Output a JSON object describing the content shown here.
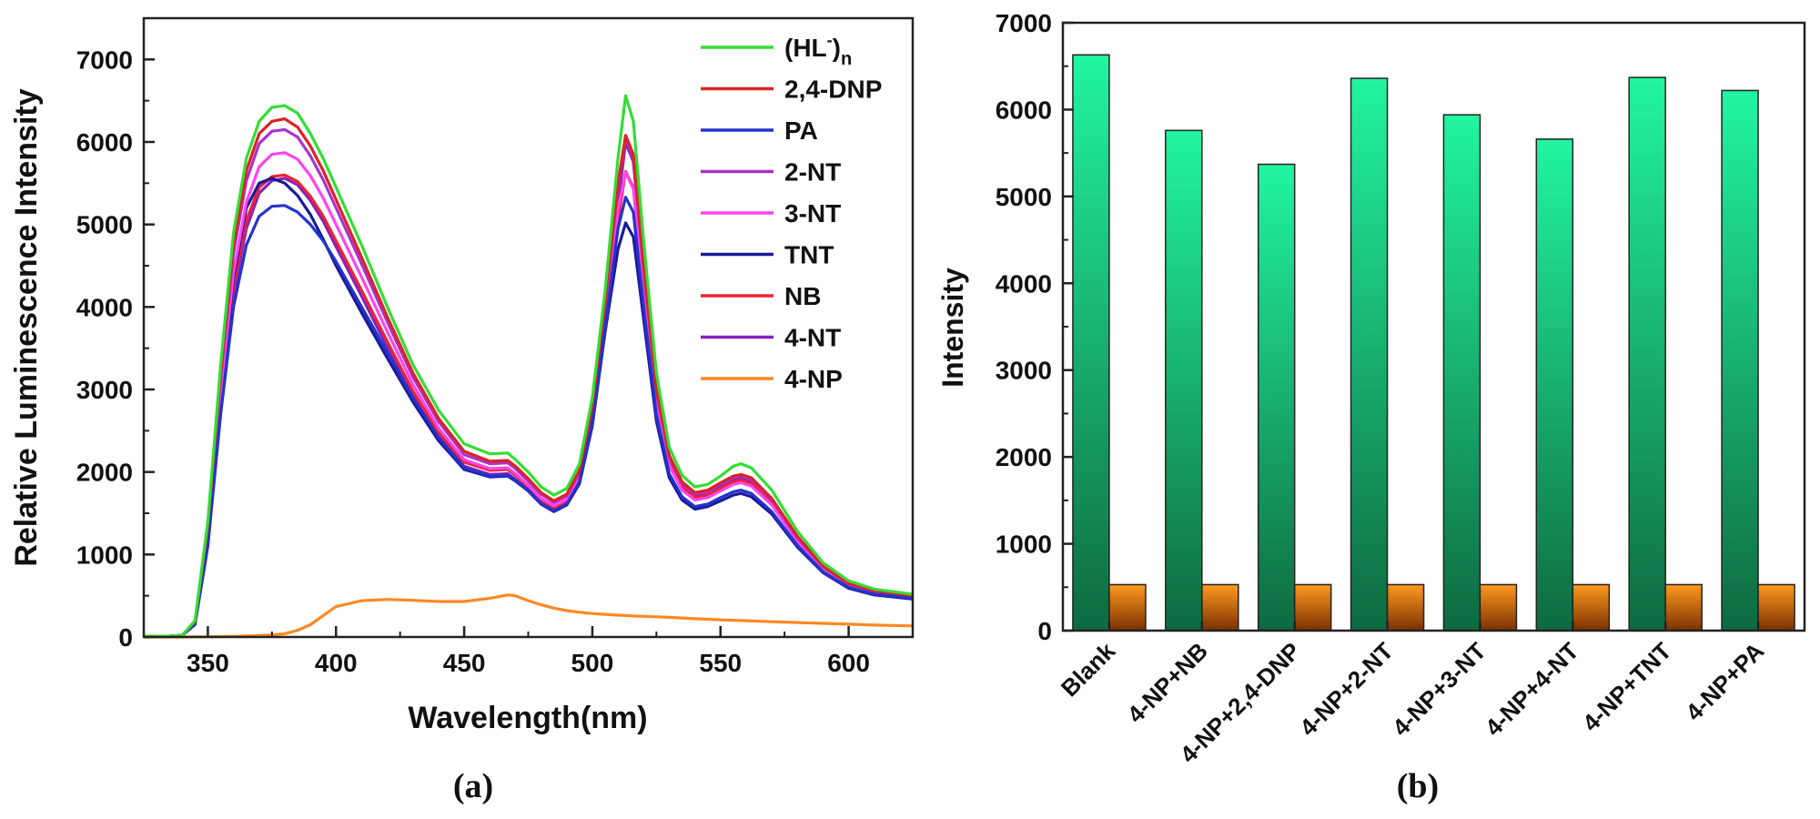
{
  "chart_data": [
    {
      "type": "line",
      "panel_label": "(a)",
      "title": "",
      "xlabel": "Wavelength(nm)",
      "ylabel": "Relative Luminescence Intensity",
      "xlim": [
        325,
        625
      ],
      "ylim": [
        0,
        7500
      ],
      "x_ticks": [
        350,
        400,
        450,
        500,
        550,
        600
      ],
      "x_tick_labels": [
        "350",
        "400",
        "450",
        "500",
        "550",
        "600"
      ],
      "y_ticks": [
        0,
        1000,
        2000,
        3000,
        4000,
        5000,
        6000,
        7000
      ],
      "y_tick_labels": [
        "0",
        "1000",
        "2000",
        "3000",
        "4000",
        "5000",
        "6000",
        "7000"
      ],
      "legend_placement": "top-right",
      "legend_title_parts": {
        "base": "(HL",
        "sup": "-",
        "close": ")",
        "sub": "n"
      },
      "x": [
        325,
        335,
        340,
        345,
        350,
        355,
        360,
        365,
        370,
        375,
        380,
        385,
        390,
        395,
        400,
        410,
        420,
        430,
        440,
        450,
        460,
        467,
        470,
        475,
        480,
        485,
        490,
        495,
        500,
        505,
        510,
        513,
        516,
        520,
        525,
        530,
        535,
        540,
        545,
        550,
        555,
        558,
        562,
        570,
        580,
        590,
        600,
        610,
        625
      ],
      "series": [
        {
          "name": "(HL-)n",
          "color": "#33dd33",
          "values": [
            10,
            10,
            20,
            200,
            1400,
            3300,
            4900,
            5800,
            6250,
            6420,
            6440,
            6350,
            6100,
            5800,
            5450,
            4750,
            4000,
            3300,
            2750,
            2340,
            2220,
            2230,
            2150,
            2000,
            1820,
            1720,
            1800,
            2100,
            2900,
            4200,
            5800,
            6560,
            6250,
            4800,
            3200,
            2300,
            1960,
            1820,
            1850,
            1950,
            2070,
            2100,
            2050,
            1780,
            1280,
            900,
            680,
            580,
            520
          ]
        },
        {
          "name": "2,4-DNP",
          "color": "#dd2222",
          "values": [
            10,
            10,
            20,
            190,
            1350,
            3200,
            4750,
            5650,
            6100,
            6250,
            6280,
            6180,
            5950,
            5650,
            5300,
            4600,
            3880,
            3200,
            2650,
            2250,
            2130,
            2140,
            2070,
            1920,
            1750,
            1650,
            1730,
            2020,
            2800,
            4050,
            5500,
            6080,
            5850,
            4500,
            3000,
            2200,
            1880,
            1750,
            1780,
            1870,
            1950,
            1970,
            1930,
            1680,
            1220,
            860,
            650,
            560,
            500
          ]
        },
        {
          "name": "PA",
          "color": "#2233cc",
          "values": [
            10,
            10,
            20,
            150,
            1100,
            2700,
            4000,
            4750,
            5100,
            5220,
            5230,
            5150,
            5000,
            4800,
            4550,
            4000,
            3450,
            2900,
            2420,
            2050,
            1950,
            1960,
            1900,
            1780,
            1620,
            1530,
            1610,
            1880,
            2600,
            3750,
            4950,
            5330,
            5150,
            4000,
            2700,
            1980,
            1700,
            1580,
            1610,
            1690,
            1760,
            1780,
            1740,
            1520,
            1110,
            790,
            600,
            520,
            470
          ]
        },
        {
          "name": "2-NT",
          "color": "#aa33cc",
          "values": [
            10,
            10,
            20,
            185,
            1320,
            3120,
            4650,
            5530,
            5980,
            6130,
            6150,
            6060,
            5830,
            5540,
            5200,
            4520,
            3820,
            3150,
            2610,
            2210,
            2100,
            2110,
            2040,
            1890,
            1730,
            1630,
            1710,
            1990,
            2760,
            4000,
            5450,
            6050,
            5800,
            4450,
            2980,
            2180,
            1860,
            1730,
            1760,
            1850,
            1930,
            1950,
            1910,
            1660,
            1200,
            850,
            640,
            550,
            500
          ]
        },
        {
          "name": "3-NT",
          "color": "#ff44ee",
          "values": [
            10,
            10,
            20,
            175,
            1260,
            2980,
            4420,
            5270,
            5700,
            5850,
            5870,
            5790,
            5590,
            5320,
            5000,
            4360,
            3700,
            3060,
            2530,
            2150,
            2040,
            2050,
            1980,
            1840,
            1680,
            1590,
            1670,
            1940,
            2700,
            3900,
            5180,
            5630,
            5430,
            4200,
            2830,
            2080,
            1780,
            1660,
            1690,
            1770,
            1850,
            1870,
            1830,
            1600,
            1160,
            820,
            620,
            530,
            480
          ]
        },
        {
          "name": "TNT",
          "color": "#1a1a99",
          "values": [
            10,
            10,
            20,
            170,
            1220,
            2900,
            4350,
            5200,
            5500,
            5560,
            5500,
            5350,
            5120,
            4820,
            4500,
            3930,
            3380,
            2850,
            2380,
            2030,
            1940,
            1950,
            1890,
            1770,
            1610,
            1520,
            1600,
            1860,
            2560,
            3700,
            4700,
            5020,
            4850,
            3850,
            2620,
            1930,
            1660,
            1550,
            1580,
            1650,
            1720,
            1740,
            1700,
            1490,
            1090,
            780,
            590,
            510,
            460
          ]
        },
        {
          "name": "NB",
          "color": "#ee2233",
          "values": [
            10,
            10,
            20,
            165,
            1200,
            2850,
            4250,
            5050,
            5450,
            5580,
            5600,
            5520,
            5340,
            5100,
            4800,
            4200,
            3580,
            2980,
            2480,
            2120,
            2020,
            2030,
            1960,
            1820,
            1660,
            1570,
            1650,
            1920,
            2660,
            3850,
            5050,
            5640,
            5450,
            4250,
            2870,
            2110,
            1810,
            1690,
            1720,
            1800,
            1880,
            1900,
            1860,
            1620,
            1180,
            830,
            630,
            540,
            490
          ]
        },
        {
          "name": "4-NT",
          "color": "#8822bb",
          "values": [
            10,
            10,
            20,
            160,
            1180,
            2780,
            4150,
            4950,
            5380,
            5530,
            5560,
            5480,
            5290,
            5040,
            4730,
            4130,
            3510,
            2920,
            2430,
            2070,
            1970,
            1980,
            1910,
            1780,
            1630,
            1540,
            1620,
            1890,
            2640,
            3820,
            5250,
            5990,
            5760,
            4420,
            2960,
            2160,
            1840,
            1710,
            1740,
            1820,
            1900,
            1920,
            1880,
            1640,
            1190,
            840,
            635,
            545,
            495
          ]
        },
        {
          "name": "4-NP",
          "color": "#ff8822",
          "values": [
            0,
            0,
            0,
            2,
            3,
            5,
            8,
            12,
            18,
            25,
            40,
            80,
            150,
            260,
            370,
            440,
            455,
            445,
            430,
            430,
            470,
            510,
            500,
            440,
            390,
            350,
            320,
            300,
            285,
            275,
            265,
            260,
            255,
            250,
            245,
            238,
            230,
            222,
            215,
            208,
            202,
            200,
            195,
            185,
            175,
            165,
            155,
            145,
            135
          ]
        }
      ]
    },
    {
      "type": "bar",
      "panel_label": "(b)",
      "title": "",
      "xlabel": "",
      "ylabel": "Intensity",
      "ylim": [
        0,
        7000
      ],
      "y_ticks": [
        0,
        1000,
        2000,
        3000,
        4000,
        5000,
        6000,
        7000
      ],
      "y_tick_labels": [
        "0",
        "1000",
        "2000",
        "3000",
        "4000",
        "5000",
        "6000",
        "7000"
      ],
      "categories": [
        "Blank",
        "4-NP+NB",
        "4-NP+2,4-DNP",
        "4-NP+2-NT",
        "4-NP+3-NT",
        "4-NP+4-NT",
        "4-NP+TNT",
        "4-NP+PA"
      ],
      "series": [
        {
          "name": "Intensity (green)",
          "color_top": "#22f5a0",
          "color_bottom": "#0e6a40",
          "values": [
            6630,
            5760,
            5370,
            6360,
            5940,
            5660,
            6370,
            6220
          ]
        },
        {
          "name": "Intensity (orange)",
          "color_top": "#ff9a20",
          "color_bottom": "#7a3000",
          "values": [
            530,
            530,
            530,
            530,
            530,
            530,
            530,
            530
          ]
        }
      ]
    }
  ]
}
